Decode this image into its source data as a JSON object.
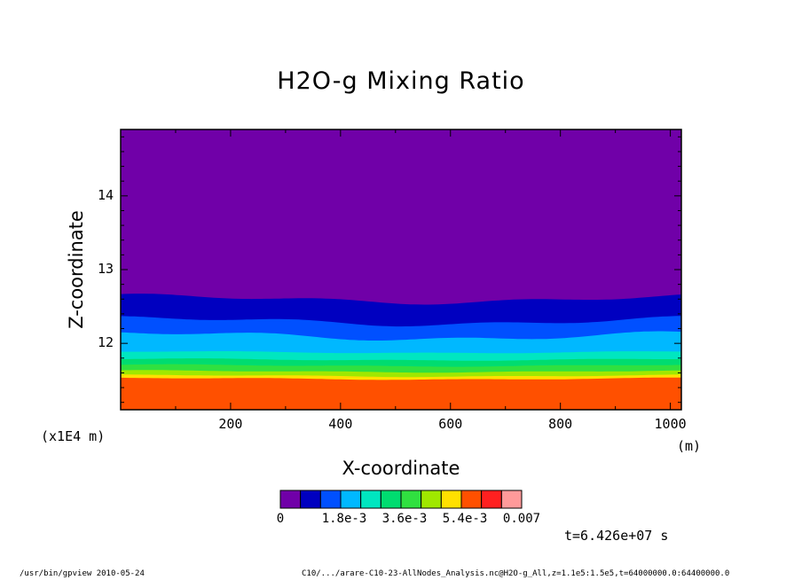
{
  "chart_data": {
    "type": "heatmap",
    "title": "H2O-g Mixing Ratio",
    "xlabel": "X-coordinate",
    "ylabel": "Z-coordinate",
    "x_units": "(m)",
    "y_scale_note": "(x1E4 m)",
    "xlim": [
      0,
      1020
    ],
    "ylim": [
      11.1,
      14.9
    ],
    "x_ticks": [
      "200",
      "400",
      "600",
      "800",
      "1000"
    ],
    "x_tick_values": [
      200,
      400,
      600,
      800,
      1000
    ],
    "y_ticks": [
      "12",
      "13",
      "14"
    ],
    "y_tick_values": [
      12,
      13,
      14
    ],
    "layers": [
      {
        "level": 0,
        "color": "#7000a8",
        "top_z_profile": null
      },
      {
        "level": 1,
        "color": "#0000c0",
        "top_z": 12.6
      },
      {
        "level": 2,
        "color": "#0050ff",
        "top_z": 12.3
      },
      {
        "level": 3,
        "color": "#00b8ff",
        "top_z": 12.1
      },
      {
        "level": 4,
        "color": "#00e6c0",
        "top_z": 11.88
      },
      {
        "level": 5,
        "color": "#00dc70",
        "top_z": 11.78
      },
      {
        "level": 6,
        "color": "#30e040",
        "top_z": 11.7
      },
      {
        "level": 7,
        "color": "#a0e800",
        "top_z": 11.62
      },
      {
        "level": 8,
        "color": "#ffe000",
        "top_z": 11.56
      },
      {
        "level": 9,
        "color": "#ff5000",
        "top_z": 11.52
      }
    ],
    "colorbar": {
      "colors": [
        "#7000a8",
        "#0000c0",
        "#0050ff",
        "#00b8ff",
        "#00e6c0",
        "#00dc70",
        "#30e040",
        "#a0e800",
        "#ffe000",
        "#ff5000",
        "#ff2020",
        "#ff9a9a"
      ],
      "labels": [
        "0",
        "1.8e-3",
        "3.6e-3",
        "5.4e-3",
        "0.007"
      ]
    },
    "time_label": "t=6.426e+07 s"
  },
  "footer": {
    "left": "/usr/bin/gpview  2010-05-24",
    "right": "C10/.../arare-C10-23-AllNodes_Analysis.nc@H2O-g_All,z=1.1e5:1.5e5,t=64000000.0:64400000.0"
  }
}
